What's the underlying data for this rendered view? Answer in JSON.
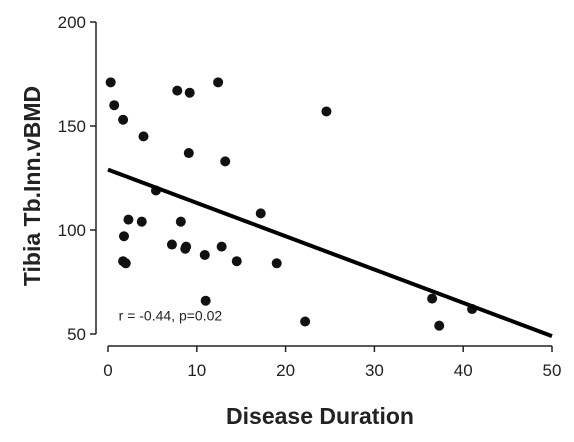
{
  "chart_data": {
    "type": "scatter",
    "title": "",
    "xlabel": "Disease Duration",
    "ylabel": "Tibia Tb.Inn.vBMD",
    "xlim": [
      0,
      50
    ],
    "ylim": [
      50,
      200
    ],
    "xticks": [
      0,
      10,
      20,
      30,
      40,
      50
    ],
    "yticks": [
      50,
      100,
      150,
      200
    ],
    "grid": false,
    "legend": "none",
    "annotation": "r = -0.44, p=0.02",
    "colors": {
      "points": "#111111",
      "line": "#000000",
      "axis": "#222222"
    },
    "points": [
      {
        "x": 0.3,
        "y": 171
      },
      {
        "x": 0.7,
        "y": 160
      },
      {
        "x": 1.7,
        "y": 153
      },
      {
        "x": 4.0,
        "y": 145
      },
      {
        "x": 7.8,
        "y": 167
      },
      {
        "x": 9.2,
        "y": 166
      },
      {
        "x": 12.4,
        "y": 171
      },
      {
        "x": 24.6,
        "y": 157
      },
      {
        "x": 9.1,
        "y": 137
      },
      {
        "x": 13.2,
        "y": 133
      },
      {
        "x": 5.4,
        "y": 119
      },
      {
        "x": 2.3,
        "y": 105
      },
      {
        "x": 3.8,
        "y": 104
      },
      {
        "x": 8.2,
        "y": 104
      },
      {
        "x": 17.2,
        "y": 108
      },
      {
        "x": 1.8,
        "y": 97
      },
      {
        "x": 7.2,
        "y": 93
      },
      {
        "x": 8.8,
        "y": 92
      },
      {
        "x": 8.7,
        "y": 91
      },
      {
        "x": 12.8,
        "y": 92
      },
      {
        "x": 10.9,
        "y": 88
      },
      {
        "x": 1.7,
        "y": 85
      },
      {
        "x": 2.0,
        "y": 84
      },
      {
        "x": 14.5,
        "y": 85
      },
      {
        "x": 19.0,
        "y": 84
      },
      {
        "x": 11.0,
        "y": 66
      },
      {
        "x": 22.2,
        "y": 56
      },
      {
        "x": 36.5,
        "y": 67
      },
      {
        "x": 37.3,
        "y": 54
      },
      {
        "x": 41.0,
        "y": 62
      }
    ],
    "fit_line": {
      "x": [
        0,
        50
      ],
      "y": [
        129,
        49
      ]
    }
  }
}
